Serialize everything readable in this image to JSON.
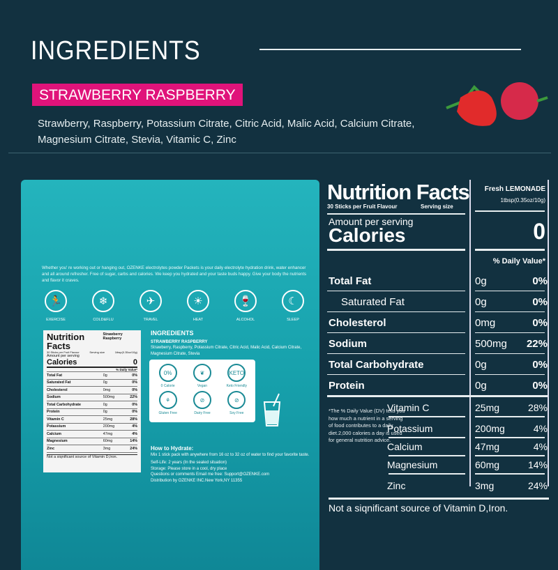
{
  "header": {
    "title": "INGREDIENTS",
    "flavor": "STRAWBERRY RASPBERRY",
    "ingredients": "Strawberry, Raspberry, Potassium Citrate, Citric Acid, Malic Acid, Calcium Citrate, Magnesium Citrate, Stevia, Vitamic C, Zinc"
  },
  "colors": {
    "background": "#123140",
    "flavor_tag": "#e0137a",
    "pack": "#1aa7b0"
  },
  "pack": {
    "blurb": "Whether you' re working out or hanging out, OZENKE electrolytes powder Packets is your daily electrolyte hydration drink, water enhancer and all around refresher. Free of sugar, carbs and calories. We keep you hydrated and your taste buds happy. Give your body the nutrients and flavor it craves.",
    "uses": [
      {
        "label": "EXERCISE",
        "icon": "exercise-icon"
      },
      {
        "label": "COLD&FLU",
        "icon": "cold-flu-icon"
      },
      {
        "label": "TRAVEL",
        "icon": "travel-icon"
      },
      {
        "label": "HEAT",
        "icon": "sun-icon"
      },
      {
        "label": "ALCOHOL",
        "icon": "wine-icon"
      },
      {
        "label": "SLEEP",
        "icon": "bed-icon"
      }
    ],
    "mini_label": {
      "title": "Nutrition Facts",
      "sub": "30 Sticks per Fruit Flavour",
      "serving": "Serving size",
      "flavor": "Strawberry Raspberry",
      "size": "1tbsp(0.35oz/10g)",
      "amount": "Amount per serving",
      "calories": "Calories",
      "cal_value": "0",
      "dv": "% Daily Value*",
      "rows": [
        [
          "Total Fat",
          "0g",
          "0%"
        ],
        [
          "Saturated Fat",
          "0g",
          "0%"
        ],
        [
          "Cholesterol",
          "0mg",
          "0%"
        ],
        [
          "Sodium",
          "500mg",
          "22%"
        ],
        [
          "Total Carbohydrate",
          "0g",
          "0%"
        ],
        [
          "Protein",
          "0g",
          "0%"
        ],
        [
          "Vitamin C",
          "25mg",
          "28%"
        ],
        [
          "Potassium",
          "200mg",
          "4%"
        ],
        [
          "Calcium",
          "47mg",
          "4%"
        ],
        [
          "Magnesium",
          "60mg",
          "14%"
        ],
        [
          "Zinc",
          "3mg",
          "24%"
        ]
      ],
      "note": "Not a siqnificant source of Vitamin D,Iron."
    },
    "ingredients_title": "INGREDIENTS",
    "flavor": "STRAWBERRY RASPBERRY",
    "ingredients": "Strawberry, Raspberry, Potassium Citrate, Citric Acid, Malic Acid, Calcium Citrate, Magnesium Citrate, Stevia",
    "badges": [
      {
        "label": "0 Calorie",
        "icon": "0%"
      },
      {
        "label": "Vegan",
        "icon": "❦"
      },
      {
        "label": "Keto Friendly",
        "icon": "KETO"
      },
      {
        "label": "Gluten Free",
        "icon": "⚘"
      },
      {
        "label": "Dairy Free",
        "icon": "⊘"
      },
      {
        "label": "Soy Free",
        "icon": "⊘"
      }
    ],
    "how_title": "How to Hydrate:",
    "how_text": "Mix 1 stick pack with anywhere from 16 oz to 32 oz of water to find your favorite taste.",
    "shelf": "Self-Life: 2 years (In the sealed situation)",
    "storage": "Storage:  Please store in a cool, dry place",
    "contact": "Questions or comments Email me free:  Support@OZENKE.com",
    "distribution": "Distribution by OZENKE INC.New York,NY  11355"
  },
  "facts": {
    "title": "Nutrition Facts",
    "sub": "30 Sticks per Fruit Flavour",
    "serving_label": "Serving size",
    "flavor": "Fresh LEMONADE",
    "serving_size": "1tbsp(0.35oz/10g)",
    "amount": "Amount per serving",
    "calories": "Calories",
    "calories_value": "0",
    "dv_header": "% Daily Value*",
    "rows": [
      {
        "name": "Total Fat",
        "amount": "0g",
        "dv": "0%"
      },
      {
        "name": "Saturated Fat",
        "amount": "0g",
        "dv": "0%",
        "indent": true
      },
      {
        "name": "Cholesterol",
        "amount": "0mg",
        "dv": "0%"
      },
      {
        "name": "Sodium",
        "amount": "500mg",
        "dv": "22%"
      },
      {
        "name": "Total Carbohydrate",
        "amount": "0g",
        "dv": "0%"
      },
      {
        "name": "Protein",
        "amount": "0g",
        "dv": "0%"
      }
    ],
    "vitamins": [
      {
        "name": "Vitamin C",
        "amount": "25mg",
        "dv": "28%"
      },
      {
        "name": "Potassium",
        "amount": "200mg",
        "dv": "4%"
      },
      {
        "name": "Calcium",
        "amount": "47mg",
        "dv": "4%"
      },
      {
        "name": "Magnesium",
        "amount": "60mg",
        "dv": "14%"
      },
      {
        "name": "Zinc",
        "amount": "3mg",
        "dv": "24%"
      }
    ],
    "footnote": "*The % Daily Value (DV) tells you how much a nutrient in a serving of food contributes to a daily diet.2,000 calories a day is used for general nutrition advice.",
    "not_source": "Not a siqnificant source of  Vitamin D,Iron."
  }
}
